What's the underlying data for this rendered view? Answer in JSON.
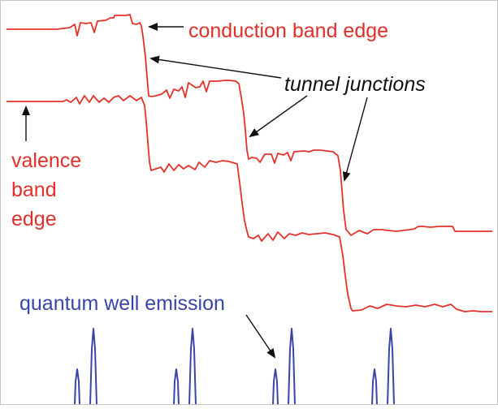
{
  "labels": {
    "conduction": "conduction band edge",
    "tunnel": "tunnel junctions",
    "valence_lines": [
      "valence",
      "band",
      "edge"
    ],
    "emission": "quantum well emission"
  },
  "colors": {
    "band": "#e4322b",
    "band_text": "#e0302a",
    "emission": "#3a45a8",
    "arrow": "#111111"
  },
  "icons": {
    "arrow": "arrow-icon"
  }
}
